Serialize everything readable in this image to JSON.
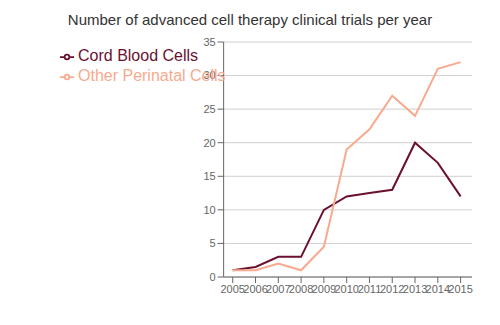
{
  "chart_data": {
    "type": "line",
    "title": "Number of advanced cell therapy clinical trials per year",
    "x": [
      2005,
      2006,
      2007,
      2008,
      2009,
      2010,
      2011,
      2012,
      2013,
      2014,
      2015
    ],
    "series": [
      {
        "name": "Cord Blood Cells",
        "color": "#6b1030",
        "values": [
          1,
          1.5,
          3,
          3,
          10,
          12,
          12.5,
          13,
          20,
          17,
          12
        ]
      },
      {
        "name": "Other Perinatal Cells",
        "color": "#f9a98e",
        "values": [
          1,
          1,
          2,
          1,
          4.5,
          19,
          22,
          27,
          24,
          31,
          32
        ]
      }
    ],
    "xlim": [
      2004.6,
      2015.5
    ],
    "xticks": [
      2005,
      2006,
      2007,
      2008,
      2009,
      2010,
      2011,
      2012,
      2013,
      2014,
      2015
    ],
    "ylim": [
      0,
      35
    ],
    "yticks": [
      0,
      5,
      10,
      15,
      20,
      25,
      30,
      35
    ],
    "grid": true,
    "legend": "upper left"
  }
}
